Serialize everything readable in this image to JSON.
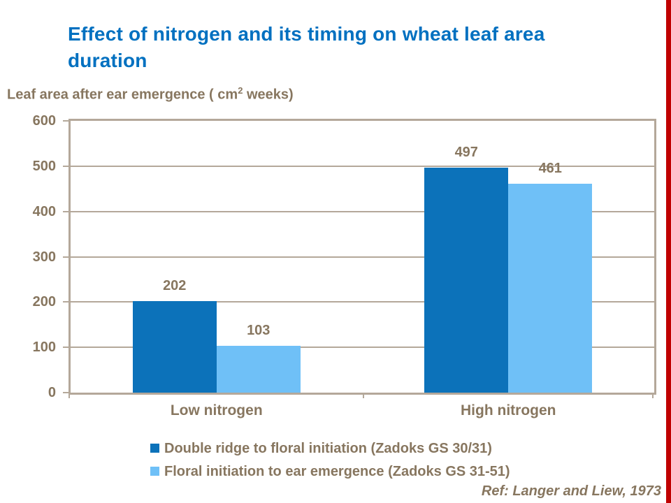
{
  "slide": {
    "title": "Effect of nitrogen and its timing on wheat leaf area duration",
    "ref": "Ref: Langer and Liew, 1973",
    "axis_title_prefix": "Leaf area after ear emergence ( cm",
    "axis_title_sup": "2",
    "axis_title_suffix": " weeks)"
  },
  "colors": {
    "accent_red": "#c00000",
    "title_blue": "#0070c0",
    "text_brown": "#87765f",
    "axis_tan": "#b4a89a",
    "series_dark": "#0c72ba",
    "series_light": "#6fc0f7"
  },
  "chart_data": {
    "type": "bar",
    "title": "Leaf area after ear emergence ( cm2 weeks)",
    "categories": [
      "Low nitrogen",
      "High nitrogen"
    ],
    "series": [
      {
        "name": "Double ridge to floral initiation (Zadoks GS 30/31)",
        "values": [
          202,
          497
        ],
        "color_key": "series_dark"
      },
      {
        "name": "Floral initiation to ear emergence (Zadoks GS 31-51)",
        "values": [
          103,
          461
        ],
        "color_key": "series_light"
      }
    ],
    "data_labels": [
      [
        "202",
        "497"
      ],
      [
        "103",
        "461"
      ]
    ],
    "ylim": [
      0,
      600
    ],
    "ytick_step": 100,
    "yticks": [
      "600",
      "500",
      "400",
      "300",
      "200",
      "100",
      "0"
    ],
    "grid": true,
    "legend_position": "bottom"
  }
}
